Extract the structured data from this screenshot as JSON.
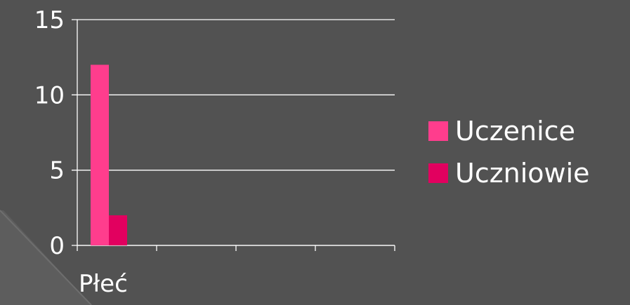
{
  "chart_data": {
    "type": "bar",
    "categories": [
      "Płeć",
      "",
      "",
      ""
    ],
    "series": [
      {
        "name": "Uczenice",
        "values": [
          12,
          null,
          null,
          null
        ],
        "color": "#ff3d8d"
      },
      {
        "name": "Uczniowie",
        "values": [
          2,
          null,
          null,
          null
        ],
        "color": "#e2005f"
      }
    ],
    "title": "",
    "xlabel": "",
    "ylabel": "",
    "ylim": [
      0,
      15
    ],
    "yticks": [
      "0",
      "5",
      "10",
      "15"
    ],
    "grid": true,
    "legend_position": "right"
  },
  "colors": {
    "background": "#525252",
    "axis": "#ffffff",
    "text": "#ffffff"
  }
}
